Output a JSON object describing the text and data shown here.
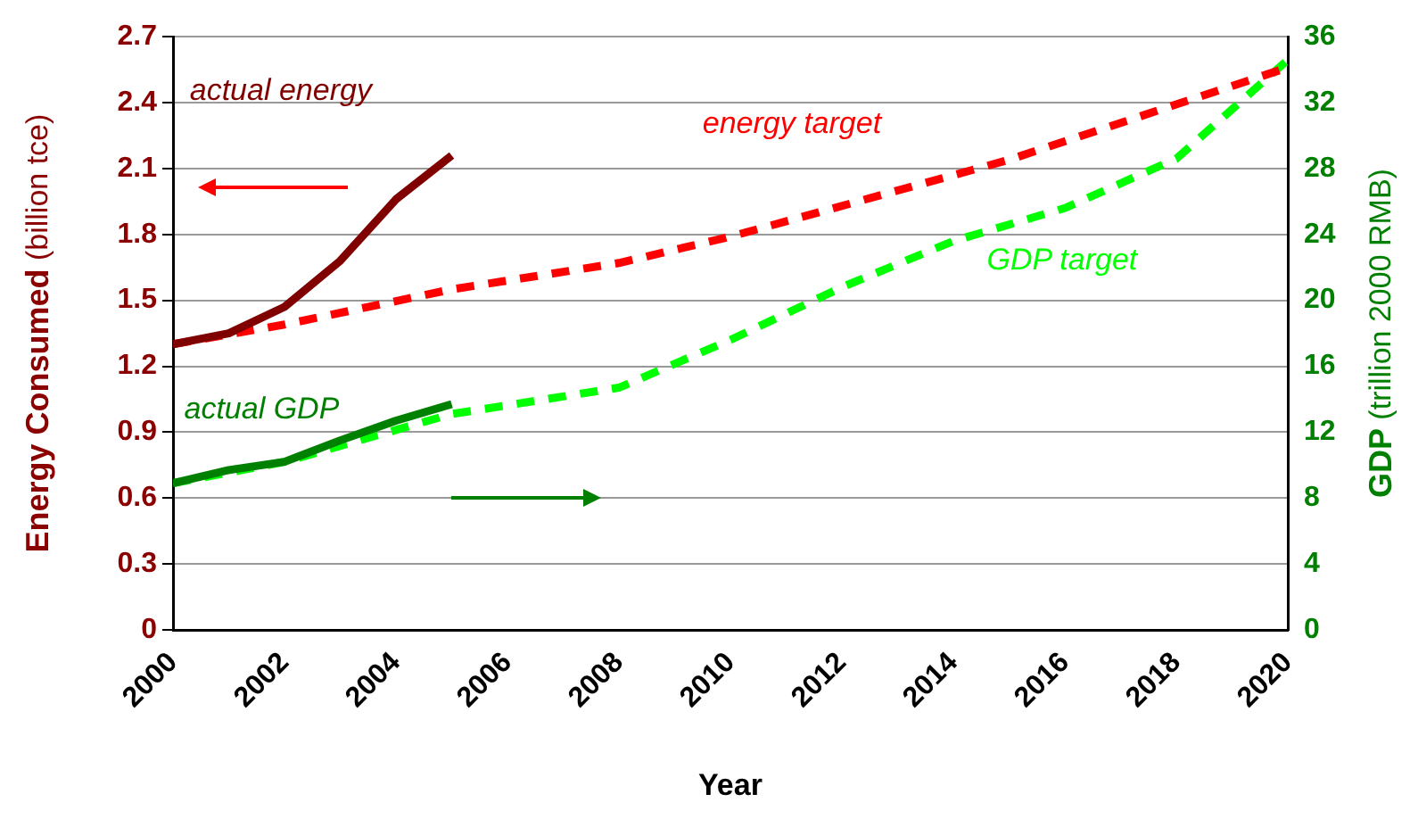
{
  "chart_data": {
    "type": "line",
    "xlabel": "Year",
    "ylabel": "Energy Consumed (billion tce)",
    "y2label": "GDP (trillion 2000 RMB)",
    "xlim": [
      2000,
      2020
    ],
    "xticks": [
      2000,
      2002,
      2004,
      2006,
      2008,
      2010,
      2012,
      2014,
      2016,
      2018,
      2020
    ],
    "ylim": [
      0,
      2.7
    ],
    "yticks": [
      0,
      0.3,
      0.6,
      0.9,
      1.2,
      1.5,
      1.8,
      2.1,
      2.4,
      2.7
    ],
    "y2lim": [
      0,
      36
    ],
    "y2ticks": [
      0,
      4,
      8,
      12,
      16,
      20,
      24,
      28,
      32,
      36
    ],
    "grid": "y",
    "legend": false,
    "marker": "none",
    "series": [
      {
        "name": "actual energy",
        "color": "#800000",
        "line_style": "solid",
        "x": [
          2000,
          2001,
          2002,
          2003,
          2004,
          2005
        ],
        "values": [
          1.3,
          1.35,
          1.47,
          1.68,
          1.96,
          2.16
        ]
      },
      {
        "name": "energy target",
        "color": "#ff0000",
        "line_style": "dashed",
        "x": [
          2000,
          2002,
          2005,
          2008,
          2010,
          2015,
          2020
        ],
        "values": [
          1.3,
          1.39,
          1.55,
          1.67,
          1.79,
          2.14,
          2.56
        ]
      },
      {
        "name": "actual GDP",
        "color": "#008000",
        "line_style": "solid",
        "axis": "y2",
        "x": [
          2000,
          2001,
          2002,
          2003,
          2004,
          2005
        ],
        "values": [
          8.9,
          9.7,
          10.2,
          11.5,
          12.7,
          13.7
        ]
      },
      {
        "name": "GDP target",
        "color": "#00ff00",
        "line_style": "dashed",
        "axis": "y2",
        "x": [
          2000,
          2002,
          2005,
          2008,
          2010,
          2012,
          2014,
          2016,
          2018,
          2020
        ],
        "values": [
          8.9,
          10.2,
          13.1,
          14.7,
          17.6,
          20.8,
          23.6,
          25.6,
          28.6,
          34.6
        ]
      }
    ]
  }
}
